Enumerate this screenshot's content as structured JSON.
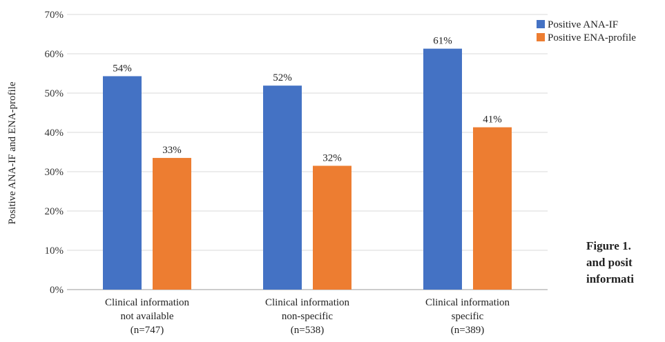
{
  "chart_data": {
    "type": "bar",
    "ylabel": "Positive ANA-IF and ENA-profile",
    "ylim": [
      0,
      70
    ],
    "y_ticks": [
      "0%",
      "10%",
      "20%",
      "30%",
      "40%",
      "50%",
      "60%",
      "70%"
    ],
    "grid": true,
    "legend_position": "top-right",
    "categories": [
      [
        "Clinical information",
        "not available",
        "(n=747)"
      ],
      [
        "Clinical information",
        "non-specific",
        "(n=538)"
      ],
      [
        "Clinical information",
        "specific",
        "(n=389)"
      ]
    ],
    "series": [
      {
        "name": "Positive ANA-IF",
        "color": "#4472c4",
        "values": [
          54.3,
          51.9,
          61.3
        ],
        "labels": [
          "54%",
          "52%",
          "61%"
        ]
      },
      {
        "name": "Positive ENA-profile",
        "color": "#ed7d31",
        "values": [
          33.5,
          31.5,
          41.3
        ],
        "labels": [
          "33%",
          "32%",
          "41%"
        ]
      }
    ]
  },
  "caption_lines": [
    "Figure 1.",
    "and posit",
    "informati"
  ]
}
